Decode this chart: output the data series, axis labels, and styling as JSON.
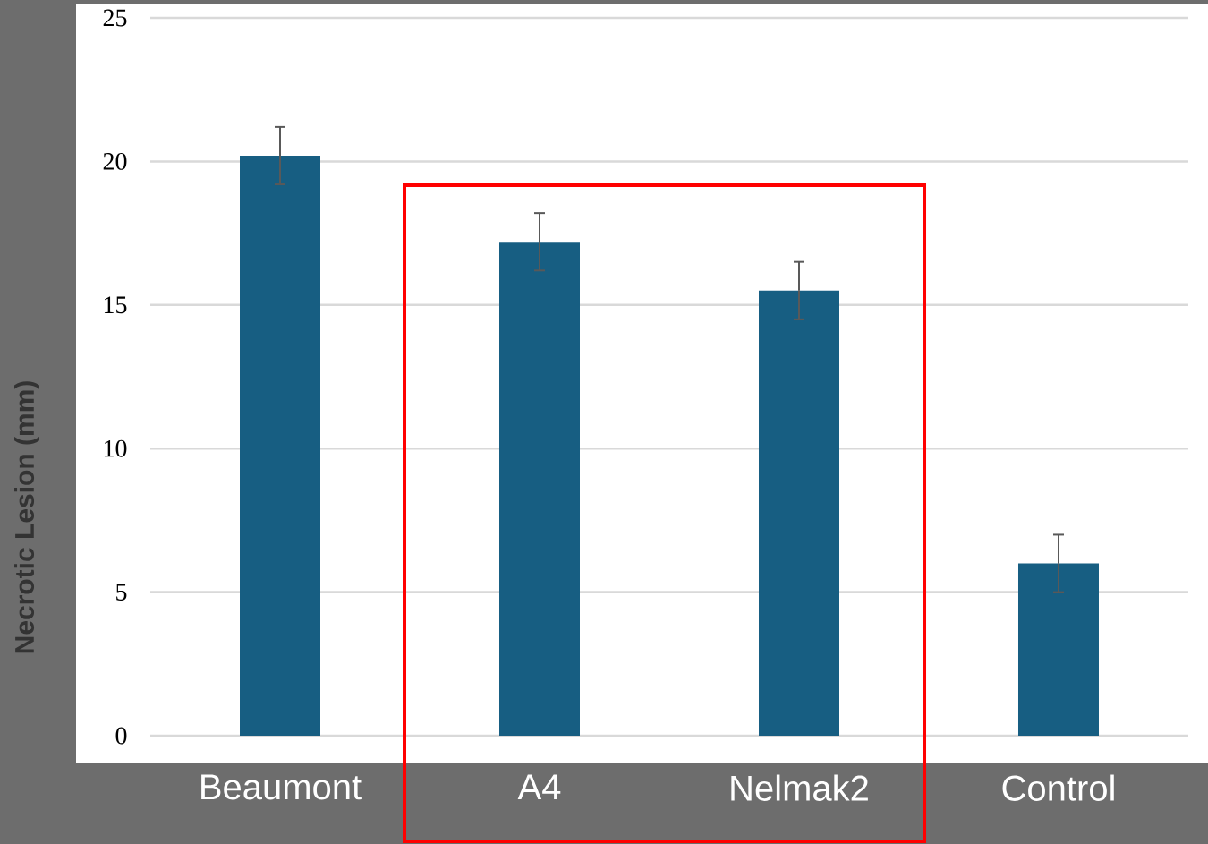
{
  "chart_data": {
    "type": "bar",
    "ylabel": "Necrotic Lesion (mm)",
    "categories": [
      "Beaumont",
      "A4",
      "Nelmak2",
      "Control"
    ],
    "values": [
      20.2,
      17.2,
      15.5,
      6.0
    ],
    "errors": [
      1.0,
      1.0,
      1.0,
      1.0
    ],
    "color": "#175e82",
    "ylim": [
      0,
      25
    ],
    "yticks": [
      0,
      5,
      10,
      15,
      20,
      25
    ],
    "grid": "y"
  }
}
